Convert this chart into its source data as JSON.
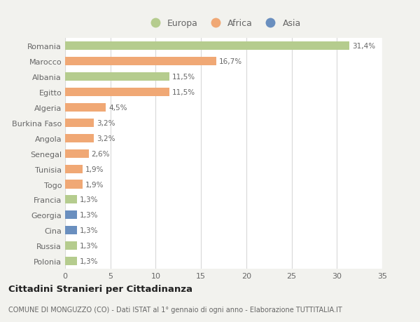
{
  "categories": [
    "Polonia",
    "Russia",
    "Cina",
    "Georgia",
    "Francia",
    "Togo",
    "Tunisia",
    "Senegal",
    "Angola",
    "Burkina Faso",
    "Algeria",
    "Egitto",
    "Albania",
    "Marocco",
    "Romania"
  ],
  "values": [
    1.3,
    1.3,
    1.3,
    1.3,
    1.3,
    1.9,
    1.9,
    2.6,
    3.2,
    3.2,
    4.5,
    11.5,
    11.5,
    16.7,
    31.4
  ],
  "labels": [
    "1,3%",
    "1,3%",
    "1,3%",
    "1,3%",
    "1,3%",
    "1,9%",
    "1,9%",
    "2,6%",
    "3,2%",
    "3,2%",
    "4,5%",
    "11,5%",
    "11,5%",
    "16,7%",
    "31,4%"
  ],
  "continent": [
    "Europa",
    "Europa",
    "Asia",
    "Asia",
    "Europa",
    "Africa",
    "Africa",
    "Africa",
    "Africa",
    "Africa",
    "Africa",
    "Africa",
    "Europa",
    "Africa",
    "Europa"
  ],
  "colors": {
    "Europa": "#b5cc8e",
    "Africa": "#f0a875",
    "Asia": "#6a8fbf"
  },
  "legend_labels": [
    "Europa",
    "Africa",
    "Asia"
  ],
  "legend_colors": [
    "#b5cc8e",
    "#f0a875",
    "#6a8fbf"
  ],
  "title": "Cittadini Stranieri per Cittadinanza",
  "subtitle": "COMUNE DI MONGUZZO (CO) - Dati ISTAT al 1° gennaio di ogni anno - Elaborazione TUTTITALIA.IT",
  "xlim": [
    0,
    35
  ],
  "xticks": [
    0,
    5,
    10,
    15,
    20,
    25,
    30,
    35
  ],
  "background_color": "#f2f2ee",
  "plot_area_color": "#ffffff",
  "grid_color": "#d8d8d8",
  "text_color": "#666666",
  "title_color": "#222222"
}
